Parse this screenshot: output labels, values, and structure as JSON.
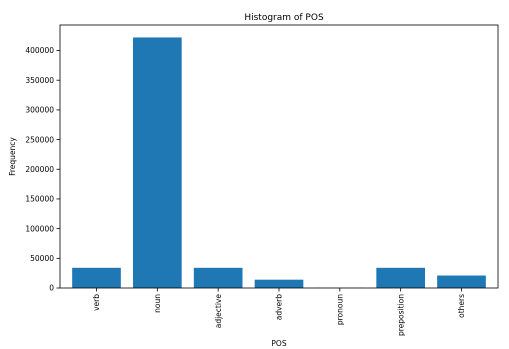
{
  "chart_data": {
    "type": "bar",
    "title": "Histogram of POS",
    "xlabel": "POS",
    "ylabel": "Frequency",
    "categories": [
      "verb",
      "noun",
      "adjective",
      "adverb",
      "pronoun",
      "preposition",
      "others"
    ],
    "values": [
      34000,
      422000,
      34000,
      14000,
      300,
      34000,
      21000
    ],
    "ylim": [
      0,
      443000
    ],
    "yticks": [
      0,
      50000,
      100000,
      150000,
      200000,
      250000,
      300000,
      350000,
      400000
    ],
    "ytick_labels": [
      "0",
      "50000",
      "100000",
      "150000",
      "200000",
      "250000",
      "300000",
      "350000",
      "400000"
    ],
    "bar_color": "#1f77b4",
    "grid": false,
    "legend": "none"
  }
}
